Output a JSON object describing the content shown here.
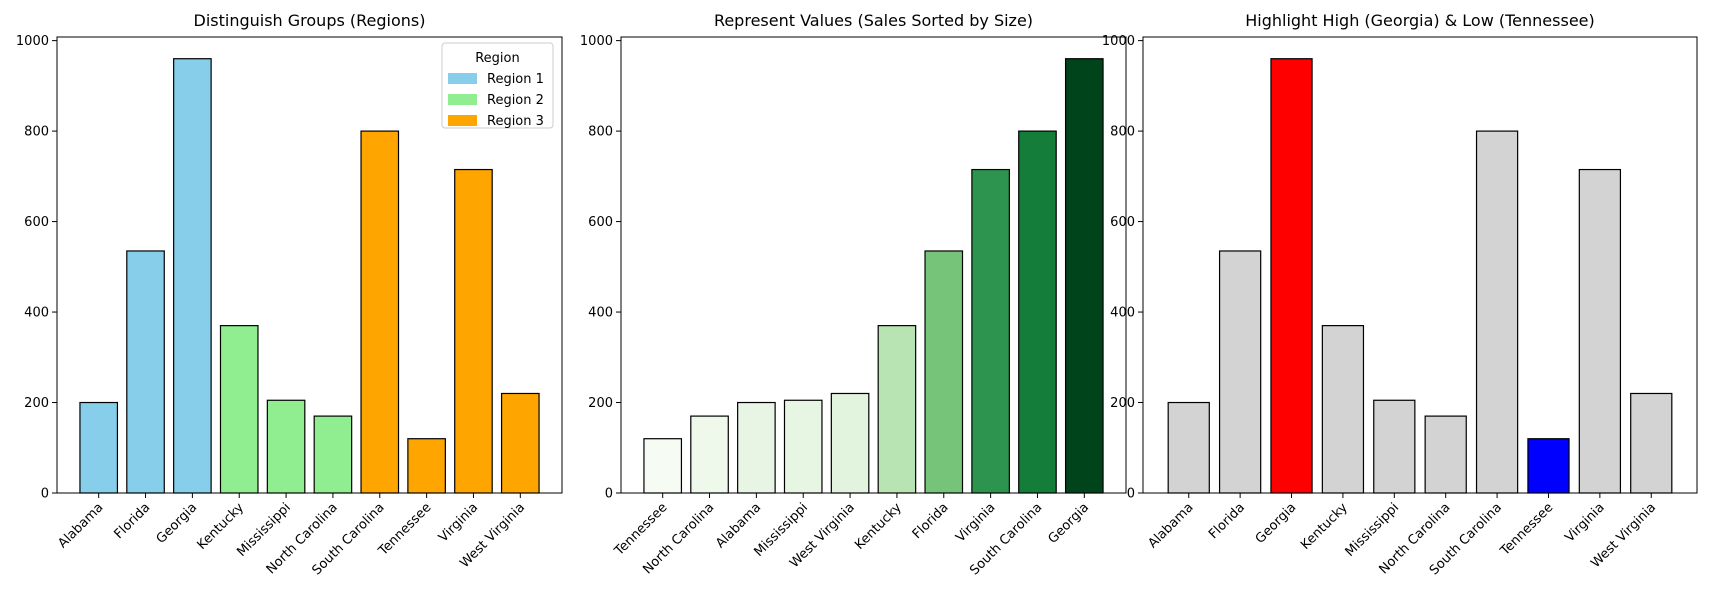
{
  "chart_data": [
    {
      "type": "bar",
      "title": "Distinguish Groups (Regions)",
      "categories": [
        "Alabama",
        "Florida",
        "Georgia",
        "Kentucky",
        "Mississippi",
        "North Carolina",
        "South Carolina",
        "Tennessee",
        "Virginia",
        "West Virginia"
      ],
      "values": [
        200,
        535,
        960,
        370,
        205,
        170,
        800,
        120,
        715,
        220
      ],
      "colors": [
        "#87CEEB",
        "#87CEEB",
        "#87CEEB",
        "#90EE90",
        "#90EE90",
        "#90EE90",
        "#FFA500",
        "#FFA500",
        "#FFA500",
        "#FFA500"
      ],
      "ylim": [
        0,
        1000
      ],
      "yticks": [
        0,
        200,
        400,
        600,
        800,
        1000
      ],
      "grid": false,
      "legend": {
        "title": "Region",
        "placement": "top-right",
        "entries": [
          {
            "label": "Region 1",
            "color": "#87CEEB"
          },
          {
            "label": "Region 2",
            "color": "#90EE90"
          },
          {
            "label": "Region 3",
            "color": "#FFA500"
          }
        ]
      }
    },
    {
      "type": "bar",
      "title": "Represent Values (Sales Sorted by Size)",
      "categories": [
        "Tennessee",
        "North Carolina",
        "Alabama",
        "Mississippi",
        "West Virginia",
        "Kentucky",
        "Florida",
        "Virginia",
        "South Carolina",
        "Georgia"
      ],
      "values": [
        120,
        170,
        200,
        205,
        220,
        370,
        535,
        715,
        800,
        960
      ],
      "colors": [
        "#F6FBF4",
        "#EEF8EB",
        "#E8F5E4",
        "#E7F5E3",
        "#E2F3DE",
        "#B8E3B2",
        "#76C47A",
        "#2D944F",
        "#137D39",
        "#00441B"
      ],
      "ylim": [
        0,
        1000
      ],
      "yticks": [
        0,
        200,
        400,
        600,
        800,
        1000
      ],
      "grid": false
    },
    {
      "type": "bar",
      "title": "Highlight High (Georgia) & Low (Tennessee)",
      "categories": [
        "Alabama",
        "Florida",
        "Georgia",
        "Kentucky",
        "Mississippi",
        "North Carolina",
        "South Carolina",
        "Tennessee",
        "Virginia",
        "West Virginia"
      ],
      "values": [
        200,
        535,
        960,
        370,
        205,
        170,
        800,
        120,
        715,
        220
      ],
      "colors": [
        "#D3D3D3",
        "#D3D3D3",
        "#FF0000",
        "#D3D3D3",
        "#D3D3D3",
        "#D3D3D3",
        "#D3D3D3",
        "#0000FF",
        "#D3D3D3",
        "#D3D3D3"
      ],
      "ylim": [
        0,
        1000
      ],
      "yticks": [
        0,
        200,
        400,
        600,
        800,
        1000
      ],
      "grid": false
    }
  ]
}
